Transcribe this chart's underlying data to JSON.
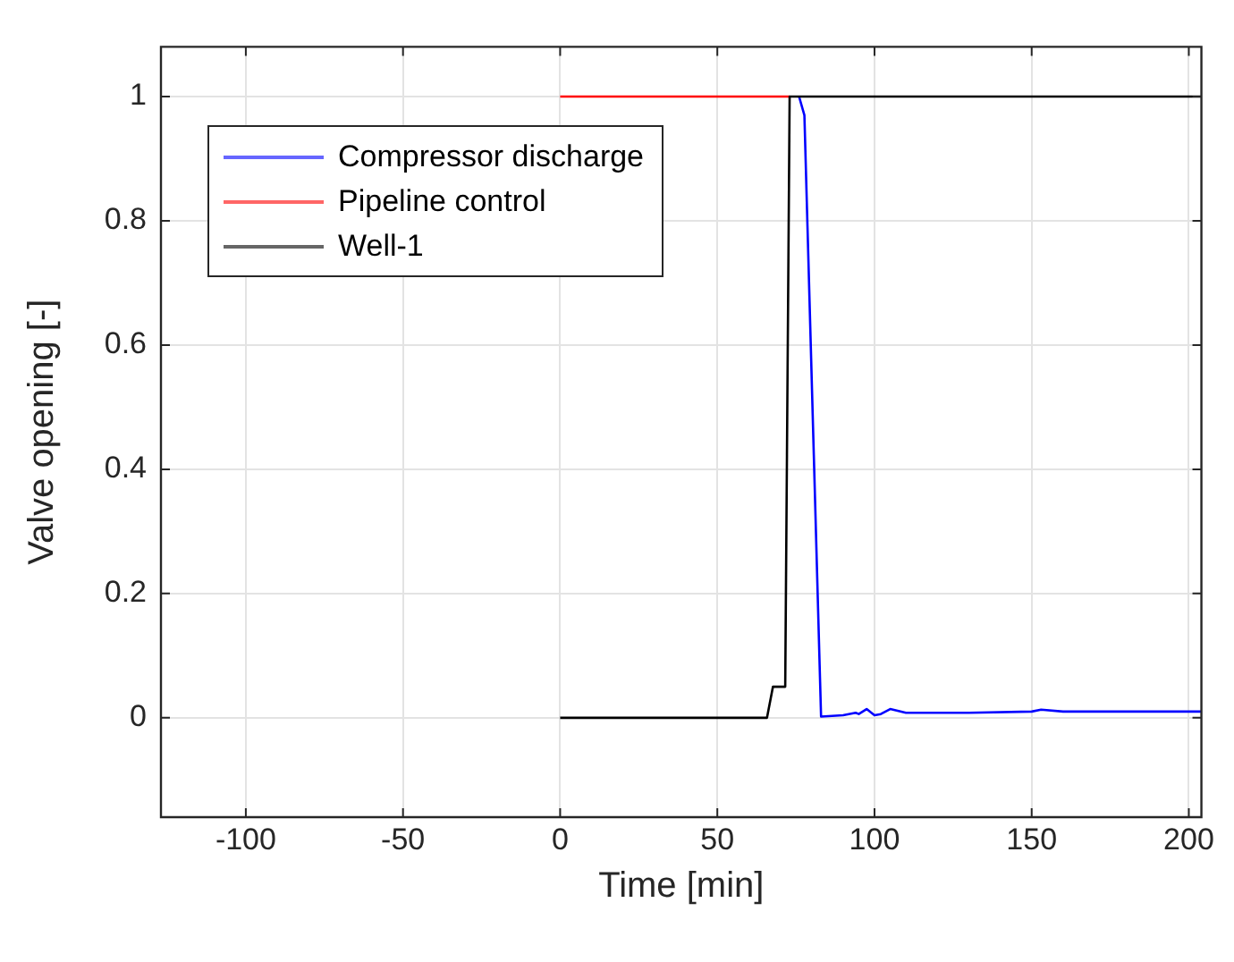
{
  "chart_data": {
    "type": "line",
    "xlabel": "Time [min]",
    "ylabel": "Valve opening [-]",
    "xlim": [
      -127,
      204
    ],
    "ylim": [
      -0.16,
      1.08
    ],
    "xticks": [
      -100,
      -50,
      0,
      50,
      100,
      150,
      200
    ],
    "yticks": [
      0,
      0.2,
      0.4,
      0.6,
      0.8,
      1
    ],
    "grid": true,
    "legend": "top left",
    "series": [
      {
        "name": "Compressor discharge",
        "color": "#0000ff",
        "x": [
          76,
          77.7,
          83,
          90,
          94,
          95,
          97.5,
          100,
          102,
          105,
          110,
          130,
          150,
          153,
          160,
          204
        ],
        "values": [
          1,
          0.97,
          0.002,
          0.004,
          0.008,
          0.006,
          0.014,
          0.004,
          0.006,
          0.014,
          0.008,
          0.008,
          0.01,
          0.013,
          0.01,
          0.01
        ]
      },
      {
        "name": "Pipeline control",
        "color": "#ff0000",
        "x": [
          0,
          73
        ],
        "values": [
          1,
          1
        ]
      },
      {
        "name": "Well-1",
        "color": "#000000",
        "x": [
          0,
          65.8,
          67.7,
          71.6,
          73,
          204
        ],
        "values": [
          0,
          0,
          0.05,
          0.05,
          1,
          1
        ]
      }
    ]
  }
}
